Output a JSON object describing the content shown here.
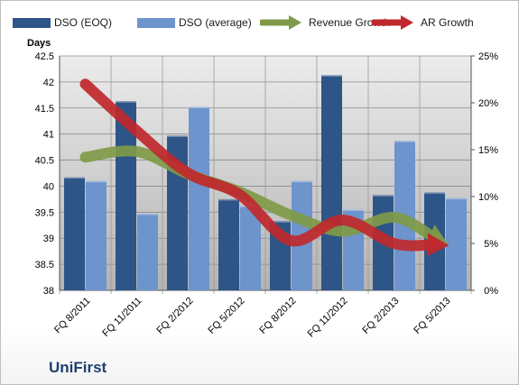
{
  "chart_data": {
    "type": "bar",
    "ylabel": "Days",
    "ylim": [
      38,
      42.5
    ],
    "y_ticks": [
      38,
      38.5,
      39,
      39.5,
      40,
      40.5,
      41,
      41.5,
      42,
      42.5
    ],
    "y2lim": [
      0,
      25
    ],
    "y2_ticks": [
      0,
      5,
      10,
      15,
      20,
      25
    ],
    "y2_tick_suffix": "%",
    "categories": [
      "FQ 8/2011",
      "FQ 11/2011",
      "FQ 2/2012",
      "FQ 5/2012",
      "FQ 8/2012",
      "FQ 11/2012",
      "FQ 2/2013",
      "FQ 5/2013"
    ],
    "series": [
      {
        "name": "DSO (EOQ)",
        "kind": "bar",
        "axis": "left",
        "color": "#2e5587",
        "values": [
          40.17,
          41.63,
          40.97,
          39.75,
          39.33,
          42.13,
          39.83,
          39.88
        ]
      },
      {
        "name": "DSO (average)",
        "kind": "bar",
        "axis": "left",
        "color": "#6d94cc",
        "values": [
          40.1,
          39.47,
          41.52,
          39.62,
          40.1,
          39.55,
          40.87,
          39.77
        ]
      },
      {
        "name": "Revenue Growth",
        "kind": "line-arrow",
        "axis": "right",
        "color": "#7f9a48",
        "values": [
          14.2,
          14.8,
          12.4,
          10.5,
          8.0,
          6.3,
          7.8,
          5.0
        ]
      },
      {
        "name": "AR Growth",
        "kind": "line-arrow",
        "axis": "right",
        "color": "#c0282d",
        "values": [
          22.0,
          17.0,
          12.5,
          10.2,
          5.3,
          7.5,
          5.0,
          4.8
        ]
      }
    ],
    "grid": true,
    "legend": "top",
    "plot_background": "gradient-gray"
  },
  "brand": "UniFirst"
}
